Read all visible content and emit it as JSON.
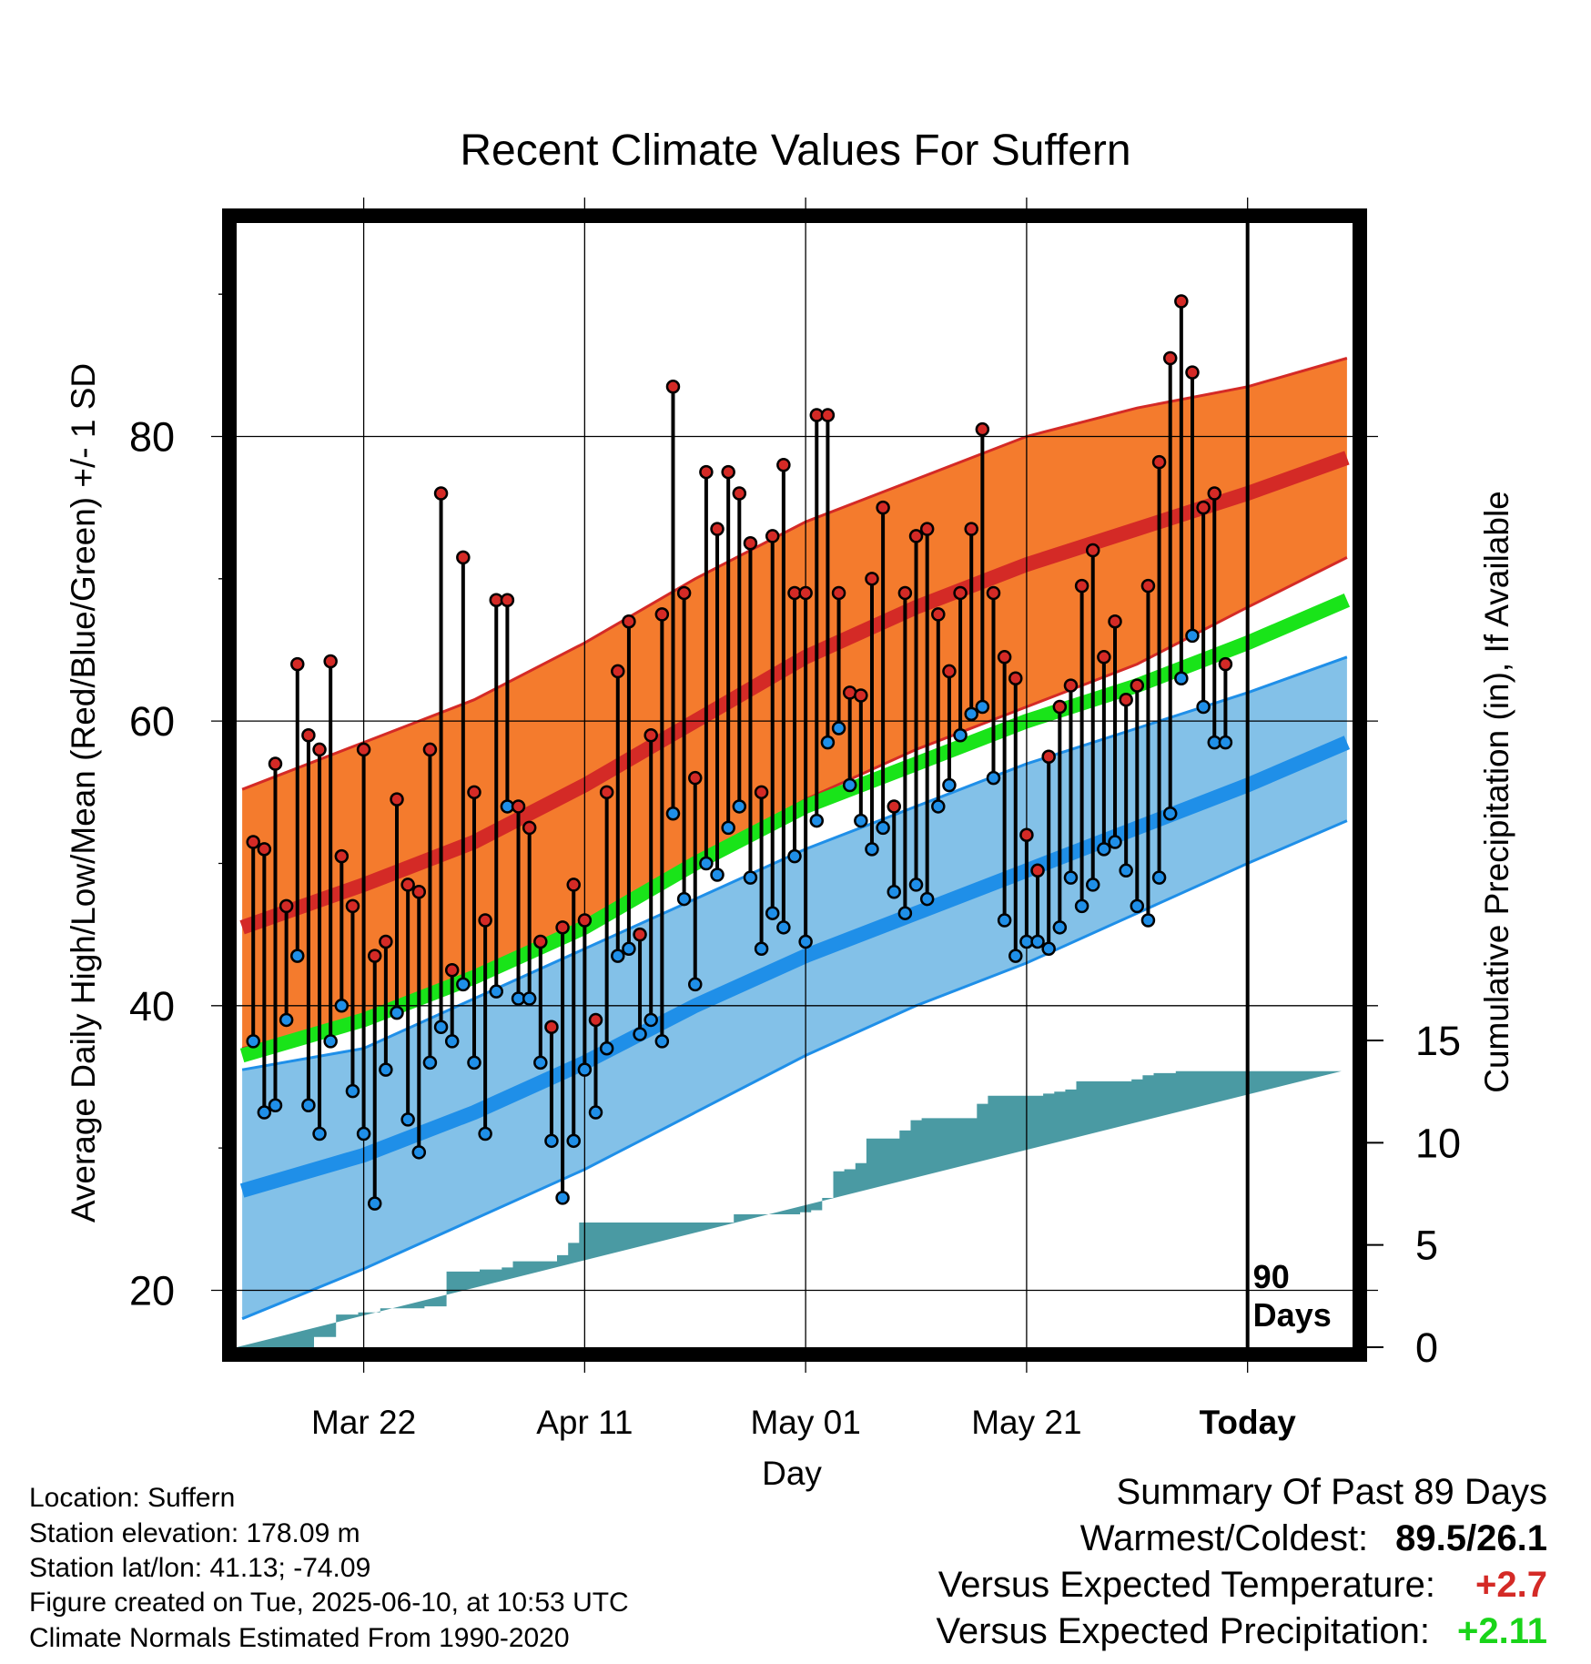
{
  "title": "Recent Climate Values For Suffern",
  "y_axis_left_label": "Average Daily High/Low/Mean (Red/Blue/Green) +/- 1 SD",
  "y_axis_right_label": "Cumulative Precipitation (in), If Available",
  "x_axis_label": "Day",
  "x_tick_labels": [
    "Mar 22",
    "Apr 11",
    "May 01",
    "May 21",
    "Today"
  ],
  "y_tick_labels": [
    "20",
    "40",
    "60",
    "80"
  ],
  "precip_tick_labels": [
    "0",
    "5",
    "10",
    "15"
  ],
  "today_marker_label": [
    "90",
    "Days"
  ],
  "info": [
    "Location: Suffern",
    "Station elevation: 178.09 m",
    "Station lat/lon: 41.13; -74.09",
    "Figure created on Tue, 2025-06-10, at 10:53 UTC",
    "Climate Normals Estimated From 1990-2020"
  ],
  "summary": {
    "heading": "Summary Of Past 89 Days",
    "warmest_coldest_label": "Warmest/Coldest:",
    "warmest_coldest_value": "89.5/26.1",
    "temp_label": "Versus Expected Temperature:",
    "temp_value": "+2.7",
    "precip_label": "Versus Expected Precipitation:",
    "precip_value": "+2.11"
  },
  "colors": {
    "high_band": "#f47b2d",
    "high_line": "#d42a26",
    "mean_line": "#19e419",
    "low_band": "#83c1e8",
    "low_line": "#1f8fe8",
    "precip_fill": "#4a9aa3",
    "high_dot": "#d42a26",
    "low_dot": "#1f8fe8",
    "temp_anomaly": "#d42a26",
    "precip_anomaly": "#19d419"
  },
  "chart_data": {
    "type": "line",
    "x_axis": "day offset relative to today (Jun 10)",
    "x_ticks": [
      {
        "day": -80,
        "label": "Mar 22"
      },
      {
        "day": -60,
        "label": "Apr 11"
      },
      {
        "day": -40,
        "label": "May 01"
      },
      {
        "day": -20,
        "label": "May 21"
      },
      {
        "day": 0,
        "label": "Today"
      }
    ],
    "xlim": [
      -91.5,
      9.5
    ],
    "ylim": [
      16,
      95
    ],
    "y2lim": [
      0,
      40
    ],
    "grid": true,
    "normals": {
      "high_mean": {
        "day": [
          -91,
          -80,
          -70,
          -60,
          -50,
          -40,
          -30,
          -20,
          -10,
          0,
          9
        ],
        "value": [
          45.5,
          48.5,
          51.5,
          55.5,
          60,
          64.5,
          68,
          71,
          73.5,
          76,
          78.5
        ]
      },
      "high_plus_sd": {
        "day": [
          -91,
          -80,
          -70,
          -60,
          -50,
          -40,
          -30,
          -20,
          -10,
          0,
          9
        ],
        "value": [
          55.2,
          58.5,
          61.5,
          65.5,
          70,
          74,
          77,
          80,
          82,
          83.5,
          85.5
        ]
      },
      "high_minus_sd": {
        "day": [
          -91,
          -80,
          -70,
          -60,
          -50,
          -40,
          -30,
          -20,
          -10,
          0,
          9
        ],
        "value": [
          37,
          39,
          42,
          45.5,
          50,
          54.5,
          58,
          61,
          64,
          68,
          71.5
        ]
      },
      "daily_mean": {
        "day": [
          -91,
          -80,
          -70,
          -60,
          -50,
          -40,
          -30,
          -20,
          -10,
          0,
          9
        ],
        "value": [
          36.5,
          39,
          42,
          45.5,
          50,
          54,
          57,
          60,
          62.5,
          65.5,
          68.5
        ]
      },
      "low_mean": {
        "day": [
          -91,
          -80,
          -70,
          -60,
          -50,
          -40,
          -30,
          -20,
          -10,
          0,
          9
        ],
        "value": [
          27,
          29.5,
          32.5,
          36,
          40,
          43.5,
          46.5,
          49.5,
          52.5,
          55.5,
          58.5
        ]
      },
      "low_plus_sd": {
        "day": [
          -91,
          -80,
          -70,
          -60,
          -50,
          -40,
          -30,
          -20,
          -10,
          0,
          9
        ],
        "value": [
          35.5,
          37,
          40.5,
          44,
          47.5,
          51,
          54,
          57,
          59.5,
          62,
          64.5
        ]
      },
      "low_minus_sd": {
        "day": [
          -91,
          -80,
          -70,
          -60,
          -50,
          -40,
          -30,
          -20,
          -10,
          0,
          9
        ],
        "value": [
          18,
          21.5,
          25,
          28.5,
          32.5,
          36.5,
          40,
          43,
          46.5,
          50,
          53
        ]
      }
    },
    "series": [
      {
        "name": "High",
        "day": [
          -90,
          -89,
          -88,
          -87,
          -86,
          -85,
          -84,
          -83,
          -82,
          -81,
          -80,
          -79,
          -78,
          -77,
          -76,
          -75,
          -74,
          -73,
          -72,
          -71,
          -70,
          -69,
          -68,
          -67,
          -66,
          -65,
          -64,
          -63,
          -62,
          -61,
          -60,
          -59,
          -58,
          -57,
          -56,
          -55,
          -54,
          -53,
          -52,
          -51,
          -50,
          -49,
          -48,
          -47,
          -46,
          -45,
          -44,
          -43,
          -42,
          -41,
          -40,
          -39,
          -38,
          -37,
          -36,
          -35,
          -34,
          -33,
          -32,
          -31,
          -30,
          -29,
          -28,
          -27,
          -26,
          -25,
          -24,
          -23,
          -22,
          -21,
          -20,
          -19,
          -18,
          -17,
          -16,
          -15,
          -14,
          -13,
          -12,
          -11,
          -10,
          -9,
          -8,
          -7,
          -6,
          -5,
          -4,
          -3,
          -2,
          -1
        ],
        "values": [
          51.5,
          51,
          57,
          47,
          64,
          59,
          58,
          64.2,
          50.5,
          47,
          58,
          43.5,
          44.5,
          54.5,
          48.5,
          48,
          58,
          76,
          42.5,
          71.5,
          55,
          46,
          68.5,
          68.5,
          54,
          52.5,
          44.5,
          38.5,
          45.5,
          48.5,
          46,
          39,
          55,
          63.5,
          67,
          45,
          59,
          67.5,
          83.5,
          69,
          56,
          77.5,
          73.5,
          77.5,
          76,
          72.5,
          55,
          73,
          78,
          69,
          69,
          81.5,
          81.5,
          69,
          62,
          61.8,
          70,
          75,
          54,
          69,
          73,
          73.5,
          67.5,
          63.5,
          69,
          73.5,
          80.5,
          69,
          64.5,
          63,
          52,
          49.5,
          57.5,
          61,
          62.5,
          69.5,
          72,
          64.5,
          67,
          61.5,
          62.5,
          69.5,
          78.2,
          85.5,
          89.5,
          84.5,
          75,
          76,
          64,
          null
        ]
      },
      {
        "name": "Low",
        "day": [
          -90,
          -89,
          -88,
          -87,
          -86,
          -85,
          -84,
          -83,
          -82,
          -81,
          -80,
          -79,
          -78,
          -77,
          -76,
          -75,
          -74,
          -73,
          -72,
          -71,
          -70,
          -69,
          -68,
          -67,
          -66,
          -65,
          -64,
          -63,
          -62,
          -61,
          -60,
          -59,
          -58,
          -57,
          -56,
          -55,
          -54,
          -53,
          -52,
          -51,
          -50,
          -49,
          -48,
          -47,
          -46,
          -45,
          -44,
          -43,
          -42,
          -41,
          -40,
          -39,
          -38,
          -37,
          -36,
          -35,
          -34,
          -33,
          -32,
          -31,
          -30,
          -29,
          -28,
          -27,
          -26,
          -25,
          -24,
          -23,
          -22,
          -21,
          -20,
          -19,
          -18,
          -17,
          -16,
          -15,
          -14,
          -13,
          -12,
          -11,
          -10,
          -9,
          -8,
          -7,
          -6,
          -5,
          -4,
          -3,
          -2,
          -1
        ],
        "values": [
          37.5,
          32.5,
          33,
          39,
          43.5,
          33,
          31,
          37.5,
          40,
          34,
          31,
          26.1,
          35.5,
          39.5,
          32,
          29.7,
          36,
          38.5,
          37.5,
          41.5,
          36,
          31,
          41,
          54,
          40.5,
          40.5,
          36,
          30.5,
          26.5,
          30.5,
          35.5,
          32.5,
          37,
          43.5,
          44,
          38,
          39,
          37.5,
          53.5,
          47.5,
          41.5,
          50,
          49.2,
          52.5,
          54,
          49,
          44,
          46.5,
          45.5,
          50.5,
          44.5,
          53,
          58.5,
          59.5,
          55.5,
          53,
          51,
          52.5,
          48,
          46.5,
          48.5,
          47.5,
          54,
          55.5,
          59,
          60.5,
          61,
          56,
          46,
          43.5,
          44.5,
          44.5,
          44,
          45.5,
          49,
          47,
          48.5,
          51,
          51.5,
          49.5,
          47,
          46,
          49,
          53.5,
          63,
          66,
          61,
          58.5,
          58.5,
          null
        ]
      },
      {
        "name": "Cumulative Precipitation",
        "day": [
          -91,
          -84,
          -83,
          -82,
          -81,
          -80,
          -79,
          -78,
          -77,
          -76,
          -75,
          -74,
          -73,
          -72,
          -71,
          -70,
          -69,
          -68,
          -67,
          -66,
          -65,
          -64,
          -63,
          -62,
          -61,
          -60,
          -59,
          -58,
          -57,
          -56,
          -55,
          -54,
          -53,
          -52,
          -51,
          -50,
          -49,
          -48,
          -47,
          -46,
          -45,
          -44,
          -43,
          -42,
          -41,
          -40,
          -39,
          -38,
          -37,
          -36,
          -35,
          -34,
          -33,
          -32,
          -31,
          -30,
          -29,
          -28,
          -27,
          -26,
          -25,
          -24,
          -23,
          -22,
          -21,
          -20,
          -19,
          -18,
          -17,
          -16,
          -15,
          -14,
          -13,
          -12,
          -11,
          -10,
          -9,
          -8,
          -7,
          -6,
          -5,
          -4,
          -3,
          -2,
          -1,
          0,
          9
        ],
        "values": [
          0,
          0.5,
          0.5,
          1.6,
          1.6,
          1.7,
          1.7,
          1.9,
          1.9,
          1.9,
          1.9,
          2,
          2,
          3.7,
          3.7,
          3.7,
          3.8,
          3.8,
          3.9,
          4.2,
          4.2,
          4.2,
          4.2,
          4.5,
          5.1,
          6.1,
          6.1,
          6.1,
          6.1,
          6.1,
          6.1,
          6.1,
          6.1,
          6.1,
          6.1,
          6.1,
          6.1,
          6.1,
          6.1,
          6.5,
          6.5,
          6.5,
          6.5,
          6.5,
          6.5,
          6.6,
          6.7,
          7.3,
          8.6,
          8.7,
          9,
          10.2,
          10.2,
          10.2,
          10.6,
          11.1,
          11.2,
          11.2,
          11.2,
          11.2,
          11.2,
          11.9,
          12.3,
          12.3,
          12.3,
          12.3,
          12.3,
          12.4,
          12.5,
          12.6,
          13,
          13,
          13,
          13,
          13,
          13.1,
          13.3,
          13.4,
          13.4,
          13.5,
          13.5,
          13.5,
          13.5,
          13.5,
          13.5,
          13.5
        ]
      }
    ]
  }
}
